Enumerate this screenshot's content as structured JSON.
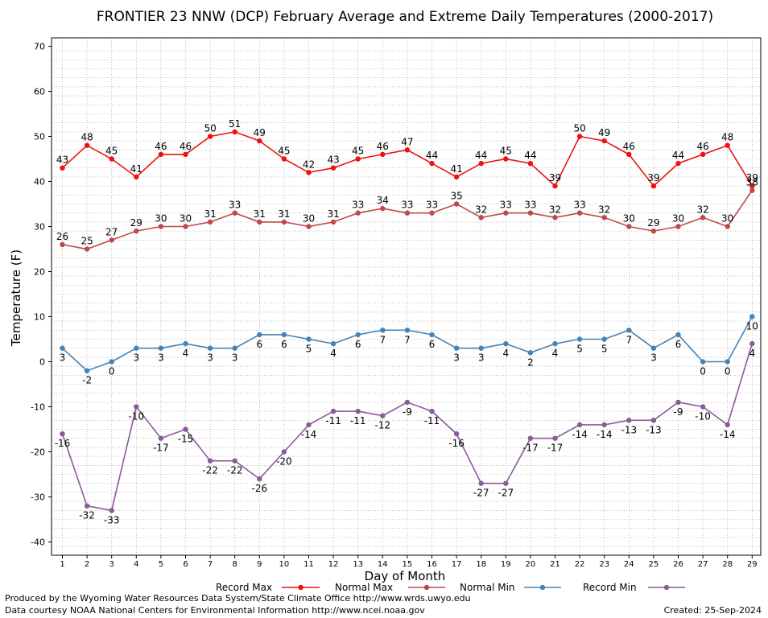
{
  "chart_data": {
    "type": "line",
    "title": "FRONTIER 23 NNW (DCP) February Average and Extreme Daily Temperatures (2000-2017)",
    "xlabel": "Day of Month",
    "ylabel": "Temperature (F)",
    "ylim": [
      -45,
      70
    ],
    "yticks": [
      -40,
      -30,
      -20,
      -10,
      0,
      10,
      20,
      30,
      40,
      50,
      60,
      70
    ],
    "xlim": [
      0.5,
      29.5
    ],
    "categories": [
      1,
      2,
      3,
      4,
      5,
      6,
      7,
      8,
      9,
      10,
      11,
      12,
      13,
      14,
      15,
      16,
      17,
      18,
      19,
      20,
      21,
      22,
      23,
      24,
      25,
      26,
      27,
      28,
      29
    ],
    "grid": true,
    "legend_position": "bottom",
    "series": [
      {
        "name": "Record Max",
        "color": "#ee1111",
        "values": [
          43,
          48,
          45,
          41,
          46,
          46,
          50,
          51,
          49,
          45,
          42,
          43,
          45,
          46,
          47,
          44,
          41,
          44,
          45,
          44,
          39,
          50,
          49,
          46,
          39,
          44,
          46,
          48,
          39
        ]
      },
      {
        "name": "Normal Max",
        "color": "#c04848",
        "values": [
          26,
          25,
          27,
          29,
          30,
          30,
          31,
          33,
          31,
          31,
          30,
          31,
          33,
          34,
          33,
          33,
          35,
          32,
          33,
          33,
          32,
          33,
          32,
          30,
          29,
          30,
          32,
          30,
          38
        ]
      },
      {
        "name": "Normal Min",
        "color": "#4682b4",
        "values": [
          3,
          -2,
          0,
          3,
          3,
          4,
          3,
          3,
          6,
          6,
          5,
          4,
          6,
          7,
          7,
          6,
          3,
          3,
          4,
          2,
          4,
          5,
          5,
          7,
          3,
          6,
          0,
          0,
          10
        ]
      },
      {
        "name": "Record Min",
        "color": "#8b5a9a",
        "values": [
          -16,
          -32,
          -33,
          -10,
          -17,
          -15,
          -22,
          -22,
          -26,
          -20,
          -14,
          -11,
          -11,
          -12,
          -9,
          -11,
          -16,
          -27,
          -27,
          -17,
          -17,
          -14,
          -14,
          -13,
          -13,
          -9,
          -10,
          -14,
          4
        ]
      }
    ]
  },
  "footer": {
    "credit1": "Produced by the Wyoming Water Resources Data System/State Climate Office http://www.wrds.uwyo.edu",
    "credit2": "Data courtesy NOAA National Centers for Environmental Information http://www.ncei.noaa.gov",
    "created": "Created:  25-Sep-2024"
  }
}
